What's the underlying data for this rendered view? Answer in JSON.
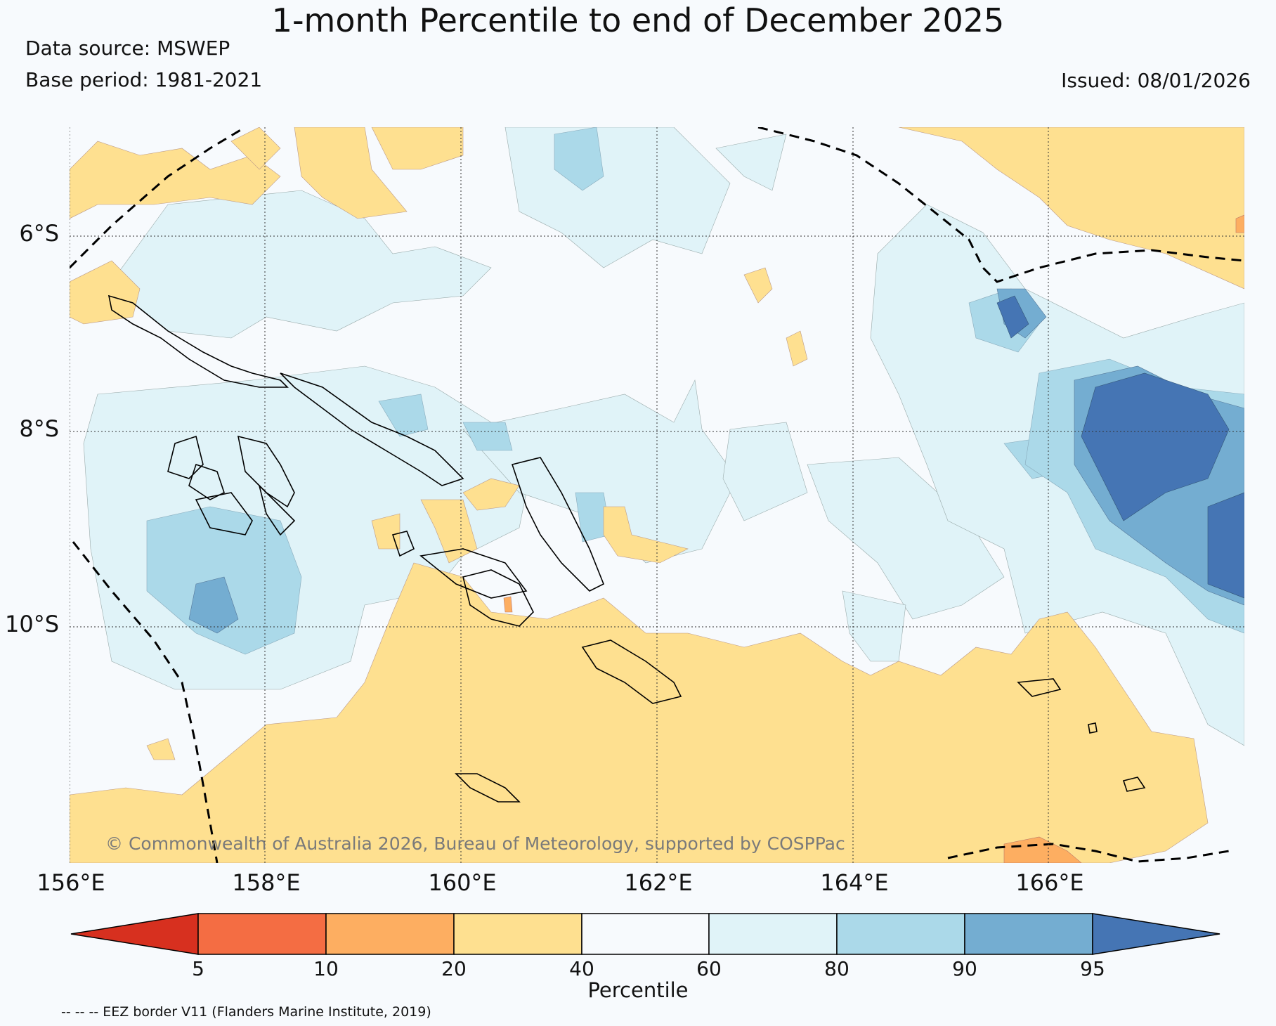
{
  "title": "1-month Percentile to end of December 2025",
  "data_source": "Data source: MSWEP",
  "base_period": "Base period: 1981-2021",
  "issued": "Issued: 08/01/2026",
  "map": {
    "lat_labels": [
      "6°S",
      "8°S",
      "10°S"
    ],
    "lon_labels": [
      "156°E",
      "158°E",
      "160°E",
      "162°E",
      "164°E",
      "166°E"
    ],
    "copyright": "© Commonwealth of Australia 2026, Bureau of Meteorology, supported by COSPPac"
  },
  "colorbar": {
    "label": "Percentile",
    "ticks": [
      "5",
      "10",
      "20",
      "40",
      "60",
      "80",
      "90",
      "95"
    ],
    "colors": [
      "#d7301f",
      "#f46d43",
      "#fdae61",
      "#fee090",
      "#f7fafd",
      "#e0f3f8",
      "#abd9e9",
      "#74add1",
      "#4575b4"
    ]
  },
  "eez_note": "-- -- -- EEZ border V11 (Flanders Marine Institute, 2019)"
}
